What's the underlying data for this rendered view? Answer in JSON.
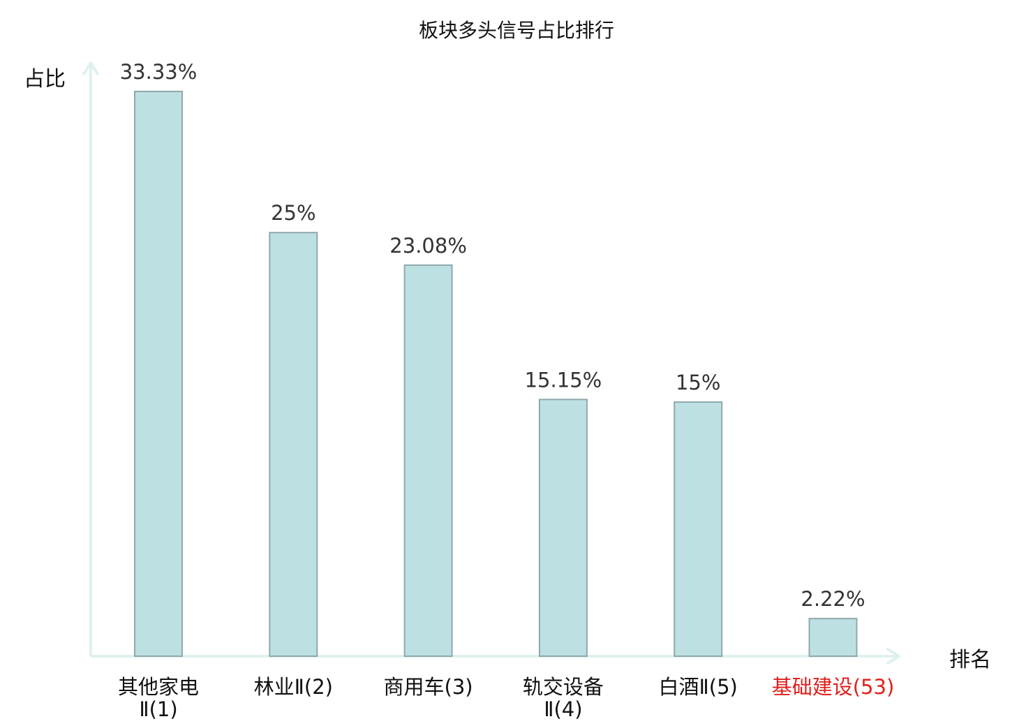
{
  "chart_data": {
    "type": "bar",
    "title": "板块多头信号占比排行",
    "xlabel": "排名",
    "ylabel": "占比",
    "categories": [
      {
        "line1": "其他家电",
        "line2": "Ⅱ(1)",
        "highlight": false
      },
      {
        "line1": "林业Ⅱ(2)",
        "line2": "",
        "highlight": false
      },
      {
        "line1": "商用车(3)",
        "line2": "",
        "highlight": false
      },
      {
        "line1": "轨交设备",
        "line2": "Ⅱ(4)",
        "highlight": false
      },
      {
        "line1": "白酒Ⅱ(5)",
        "line2": "",
        "highlight": false
      },
      {
        "line1": "基础建设(53)",
        "line2": "",
        "highlight": true
      }
    ],
    "values": [
      33.33,
      25,
      23.08,
      15.15,
      15,
      2.22
    ],
    "value_labels": [
      "33.33%",
      "25%",
      "23.08%",
      "15.15%",
      "15%",
      "2.22%"
    ],
    "ylim": [
      0,
      33.33
    ],
    "grid": false,
    "colors": {
      "bar_fill": "#bde0e2",
      "bar_stroke": "#8fa9ab",
      "axis": "#dff1ef",
      "text": "#111111",
      "value_text": "#333333",
      "highlight_text": "#e0211d"
    }
  }
}
